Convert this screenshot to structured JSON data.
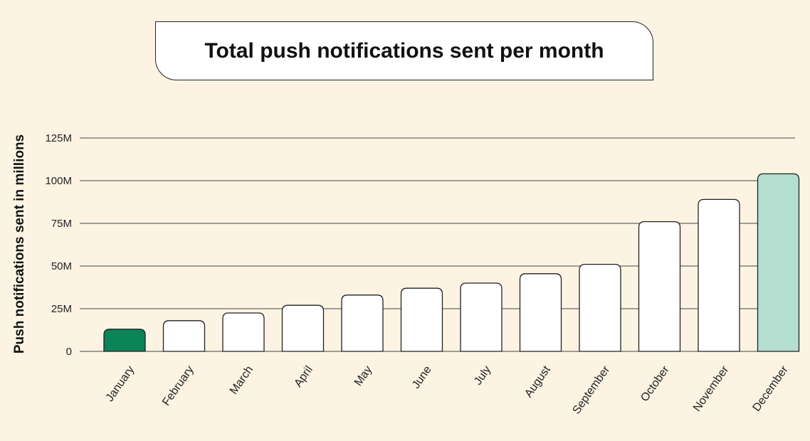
{
  "chart_data": {
    "type": "bar",
    "title": "Total push notifications sent per month",
    "xlabel": "",
    "ylabel": "Push notifications sent in millions",
    "categories": [
      "January",
      "February",
      "March",
      "April",
      "May",
      "June",
      "July",
      "August",
      "September",
      "October",
      "November",
      "December"
    ],
    "values": [
      13,
      18,
      22.5,
      27,
      33,
      37,
      40,
      45.5,
      51,
      76,
      89,
      104
    ],
    "unit": "millions",
    "ylim": [
      0,
      125
    ],
    "yticks": [
      0,
      25,
      50,
      75,
      100,
      125
    ],
    "ytick_labels": [
      "0",
      "25M",
      "50M",
      "75M",
      "100M",
      "125M"
    ],
    "grid": true,
    "legend": "none",
    "colors": {
      "background": "#fcf3e3",
      "bar_default": "#ffffff",
      "bar_first": "#0b8457",
      "bar_last": "#b4dfd1",
      "stroke": "#222222",
      "grid": "#444444"
    }
  }
}
